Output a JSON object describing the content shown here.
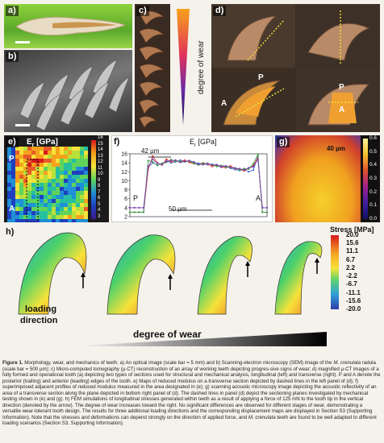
{
  "panels": {
    "a": {
      "label": "a)"
    },
    "b": {
      "label": "b)"
    },
    "c": {
      "label": "c)",
      "wear_axis_label": "degree of wear"
    },
    "d": {
      "label": "d)",
      "marker_p": "P",
      "marker_a": "A",
      "marker_p2": "P",
      "marker_a2": "A"
    },
    "e": {
      "label": "e)",
      "title": "E",
      "title_sub": "r",
      "title_unit": " [GPa]",
      "marker_p": "P",
      "marker_a": "A",
      "colorbar_ticks": [
        "16",
        "15",
        "14",
        "13",
        "12",
        "11",
        "10",
        "9",
        "8",
        "7",
        "6",
        "5",
        "4",
        "3"
      ]
    },
    "f": {
      "label": "f)",
      "title": "E",
      "title_sub": "r",
      "title_unit": " [GPa]",
      "top_dim": "42 µm",
      "bottom_dim": "50 µm",
      "marker_p": "P",
      "marker_a": "A"
    },
    "g": {
      "label": "g)",
      "dim": "40 µm",
      "colorbar_ticks": [
        "0.6",
        "0.5",
        "0.4",
        "0.3",
        "0.2",
        "0.1",
        "0.0"
      ]
    },
    "h": {
      "label": "h)",
      "stress_title": "Stress [MPa]",
      "stress_ticks": [
        "20.0",
        "15.6",
        "11.1",
        "6.7",
        "2.2",
        "-2.2",
        "-6.7",
        "-11.1",
        "-15.6",
        "-20.0"
      ],
      "loading_label_1": "loading",
      "loading_label_2": "direction",
      "wear_label": "degree of wear"
    }
  },
  "chart_data": {
    "type": "line",
    "title": "E",
    "ylabel": "",
    "xlabel": "",
    "ylim": [
      2,
      16
    ],
    "yticks": [
      2,
      4,
      6,
      8,
      10,
      12,
      14,
      16
    ],
    "x": [
      0,
      1,
      2,
      3,
      4,
      5,
      6,
      7,
      8,
      9,
      10,
      11,
      12,
      13,
      14,
      15,
      16,
      17,
      18,
      19,
      20,
      21,
      22,
      23,
      24,
      25,
      26,
      27,
      28,
      29,
      30
    ],
    "series": [
      {
        "values": [
          3,
          3,
          3,
          3,
          13,
          14,
          13.5,
          13.8,
          14.5,
          14,
          14.2,
          14.6,
          14.4,
          14.2,
          14,
          13.9,
          13.8,
          13.6,
          13.7,
          13.4,
          13,
          13.2,
          12.8,
          12.5,
          12.3,
          12.5,
          12,
          12.4,
          15.5,
          3,
          3
        ],
        "color": "#3f6fd6"
      },
      {
        "values": [
          3,
          3,
          3,
          3,
          12.5,
          15.5,
          14,
          13.5,
          14.8,
          14.2,
          14.5,
          14.2,
          14.6,
          14.1,
          13.8,
          13.6,
          14,
          13.7,
          13.2,
          13.5,
          13.1,
          12.9,
          13.3,
          12.7,
          12.6,
          12.2,
          12.8,
          13.4,
          15.2,
          3,
          3
        ],
        "color": "#e0403a"
      },
      {
        "values": [
          3,
          3,
          3,
          3,
          14.5,
          14.2,
          13.4,
          13.9,
          14.1,
          14.7,
          14.3,
          14.4,
          14.2,
          14.4,
          13.9,
          13.5,
          13.9,
          13.8,
          13.6,
          13.2,
          13.4,
          13.1,
          12.9,
          12.9,
          12.4,
          12.7,
          12.6,
          13.8,
          15.8,
          3,
          3
        ],
        "color": "#3aa24b"
      },
      {
        "values": [
          4,
          4,
          4,
          4,
          13.2,
          14.8,
          13.9,
          13.6,
          14.3,
          14.5,
          14.6,
          14.1,
          14.3,
          14.5,
          14.2,
          13.7,
          13.6,
          13.9,
          13.5,
          13.6,
          13.2,
          13.3,
          13,
          12.8,
          12.7,
          12.4,
          12.9,
          13.1,
          14.8,
          4,
          4
        ],
        "color": "#7a3fb0"
      }
    ]
  },
  "caption": {
    "fig": "Figure 1.",
    "p1": " Morphology, wear, and mechanics of teeth. a) An optical image (scale bar = 5 mm) and b) Scanning-electron microscopy (SEM) image of the ",
    "species1": "M. crenulata",
    "p2": " radula (scale bar = 500 µm); c) Micro-computed tomography (µ-CT) reconstruction of an array of working teeth depicting progres-sive signs of wear; d) magnified µ-CT images of a fully formed and operational tooth (a) depicting two types of sections used for structural and mechanical analysis, longitudinal (left) and transverse (right). P and A denote the posterior (trailing) and anterior (leading) edges of the tooth. e) Maps of reduced modulus on a transverse section depicted by dashed lines in the left panel of (d); f) superimposed adjacent profiles of reduced modulus measured in the area designated in (e); g) scanning acoustic microscopy image depicting the acoustic reflectivity of an area of a transverse section along the plane depicted in bottom right panel of (d). The dashed lines in panel (d) depict the sectioning planes investigated by mechanical testing shown in (e) and (g). h) FEM simulations of longitudinal stresses generated within teeth as a result of applying a force of 125 mN to the tooth tip in the vertical direction (denoted by the arrow). The degree of wear increases toward the right. No significant differences are observed for different stages of wear, demonstrating a versatile wear-tolerant tooth design. The results for three additional loading directions and the corresponding displacement maps are displayed in Section S3 (Supporting Information). Note that the stresses and deformations can depend strongly on the direction of applied force, and ",
    "species2": "M. crenulata",
    "p3": " teeth are found to be well adapted to different loading scenarios (Section S3, Supporting Information)."
  },
  "colors": {
    "background": "#f5f2ec",
    "stress_high": "#d7191c",
    "stress_low": "#2b3ba8",
    "wear_gradient_top": "#f7a21b",
    "wear_gradient_bottom": "#120a4a"
  }
}
